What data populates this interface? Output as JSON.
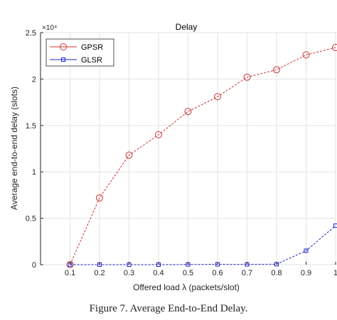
{
  "chart_data": {
    "type": "line",
    "title": "Delay",
    "xlabel": "Offered load λ (packets/slot)",
    "ylabel": "Average end-to-end delay (slots)",
    "y_exponent_label": "×10⁴",
    "x": [
      0.1,
      0.2,
      0.3,
      0.4,
      0.5,
      0.6,
      0.7,
      0.8,
      0.9,
      1.0
    ],
    "x_tick_labels": [
      "0.1",
      "0.2",
      "0.3",
      "0.4",
      "0.5",
      "0.6",
      "0.7",
      "0.8",
      "0.9",
      "1"
    ],
    "y_ticks": [
      0,
      0.5,
      1,
      1.5,
      2,
      2.5
    ],
    "y_tick_labels": [
      "0",
      "0.5",
      "1",
      "1.5",
      "2",
      "2.5"
    ],
    "xlim": [
      0,
      1.0
    ],
    "ylim": [
      0,
      2.5
    ],
    "grid": true,
    "legend_position": "top-left",
    "series": [
      {
        "name": "GPSR",
        "color": "#cc3333",
        "marker": "circle",
        "values": [
          0.0,
          0.72,
          1.18,
          1.4,
          1.65,
          1.81,
          2.02,
          2.1,
          2.26,
          2.34
        ]
      },
      {
        "name": "GLSR",
        "color": "#2222cc",
        "marker": "square",
        "values": [
          0.0,
          0.0,
          0.0,
          0.0,
          0.002,
          0.003,
          0.003,
          0.005,
          0.15,
          0.42
        ]
      }
    ]
  },
  "caption": "Figure 7. Average End-to-End Delay."
}
